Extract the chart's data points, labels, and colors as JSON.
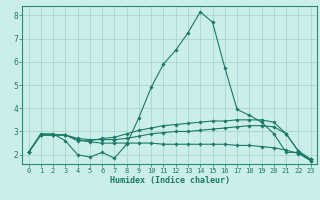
{
  "xlabel": "Humidex (Indice chaleur)",
  "bg_color": "#cceee8",
  "grid_color": "#aad4ce",
  "line_color": "#1a7a6a",
  "spine_color": "#2a8a7a",
  "xlim": [
    -0.5,
    23.5
  ],
  "ylim": [
    1.6,
    8.4
  ],
  "yticks": [
    2,
    3,
    4,
    5,
    6,
    7,
    8
  ],
  "xticks": [
    0,
    1,
    2,
    3,
    4,
    5,
    6,
    7,
    8,
    9,
    10,
    11,
    12,
    13,
    14,
    15,
    16,
    17,
    18,
    19,
    20,
    21,
    22,
    23
  ],
  "lines": [
    {
      "x": [
        0,
        1,
        2,
        3,
        4,
        5,
        6,
        7,
        8,
        9,
        10,
        11,
        12,
        13,
        14,
        15,
        16,
        17,
        18,
        19,
        20,
        21,
        22,
        23
      ],
      "y": [
        2.1,
        2.9,
        2.9,
        2.6,
        2.0,
        1.9,
        2.1,
        1.85,
        2.45,
        3.6,
        4.9,
        5.9,
        6.5,
        7.25,
        8.15,
        7.7,
        5.75,
        3.95,
        3.7,
        3.4,
        2.9,
        2.1,
        2.1,
        1.75
      ]
    },
    {
      "x": [
        0,
        1,
        2,
        3,
        4,
        5,
        6,
        7,
        8,
        9,
        10,
        11,
        12,
        13,
        14,
        15,
        16,
        17,
        18,
        19,
        20,
        21,
        22,
        23
      ],
      "y": [
        2.1,
        2.85,
        2.85,
        2.85,
        2.6,
        2.6,
        2.7,
        2.75,
        2.9,
        3.05,
        3.15,
        3.25,
        3.3,
        3.35,
        3.4,
        3.45,
        3.45,
        3.5,
        3.5,
        3.5,
        3.4,
        2.9,
        2.15,
        1.8
      ]
    },
    {
      "x": [
        0,
        1,
        2,
        3,
        4,
        5,
        6,
        7,
        8,
        9,
        10,
        11,
        12,
        13,
        14,
        15,
        16,
        17,
        18,
        19,
        20,
        21,
        22,
        23
      ],
      "y": [
        2.1,
        2.85,
        2.85,
        2.85,
        2.7,
        2.65,
        2.65,
        2.65,
        2.7,
        2.8,
        2.9,
        2.95,
        3.0,
        3.0,
        3.05,
        3.1,
        3.15,
        3.2,
        3.25,
        3.25,
        3.2,
        2.9,
        2.15,
        1.8
      ]
    },
    {
      "x": [
        0,
        1,
        2,
        3,
        4,
        5,
        6,
        7,
        8,
        9,
        10,
        11,
        12,
        13,
        14,
        15,
        16,
        17,
        18,
        19,
        20,
        21,
        22,
        23
      ],
      "y": [
        2.1,
        2.85,
        2.85,
        2.85,
        2.65,
        2.55,
        2.5,
        2.5,
        2.5,
        2.5,
        2.5,
        2.45,
        2.45,
        2.45,
        2.45,
        2.45,
        2.45,
        2.4,
        2.4,
        2.35,
        2.3,
        2.2,
        2.05,
        1.75
      ]
    }
  ]
}
